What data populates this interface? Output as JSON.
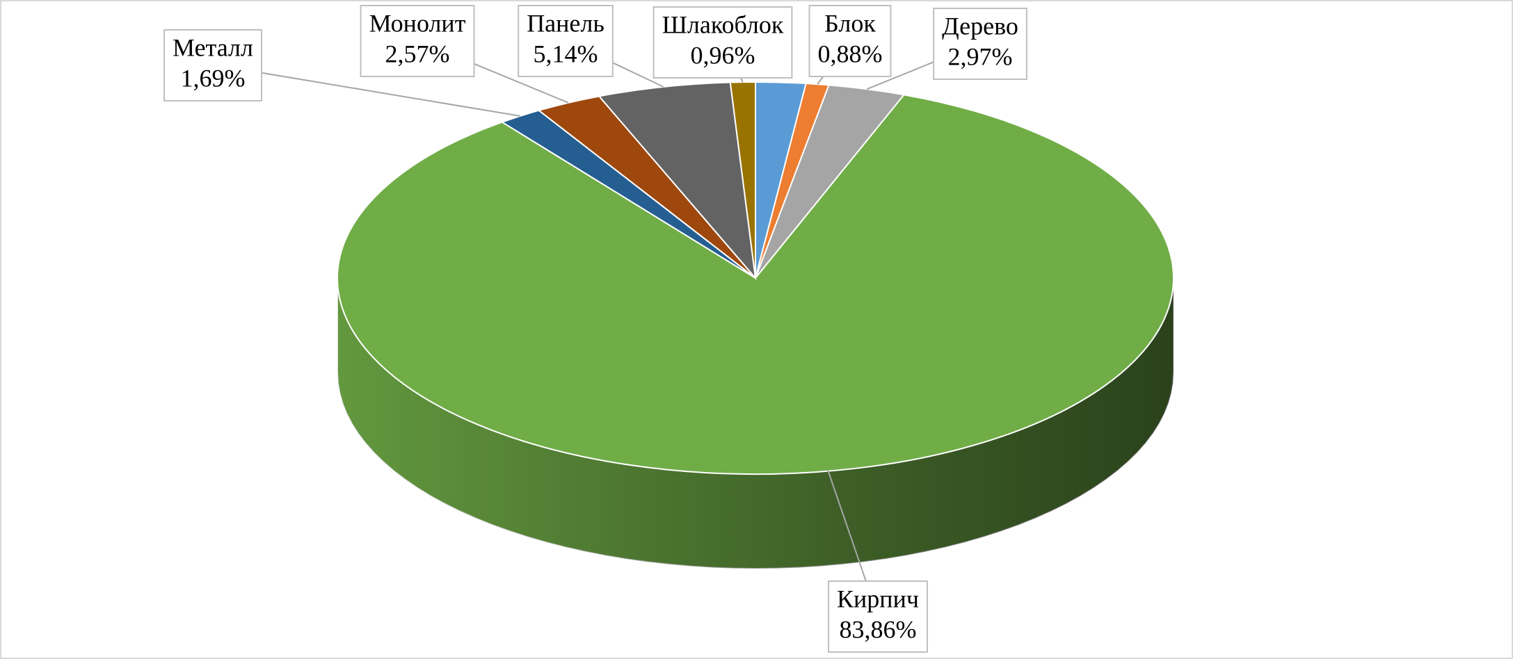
{
  "chart_data": {
    "type": "pie3d",
    "categories": [
      null,
      "Блок",
      "Дерево",
      "Кирпич",
      "Металл",
      "Монолит",
      "Панель",
      "Шлакоблок"
    ],
    "values": [
      1.93,
      0.88,
      2.97,
      83.86,
      1.69,
      2.57,
      5.14,
      0.96
    ],
    "value_labels": [
      null,
      "0,88%",
      "2,97%",
      "83,86%",
      "1,69%",
      "2,57%",
      "5,14%",
      "0,96%"
    ],
    "colors": [
      "#5b9bd5",
      "#ed7d31",
      "#a5a5a5",
      "#70ad47",
      "#255e91",
      "#9e480e",
      "#636363",
      "#997300"
    ]
  }
}
